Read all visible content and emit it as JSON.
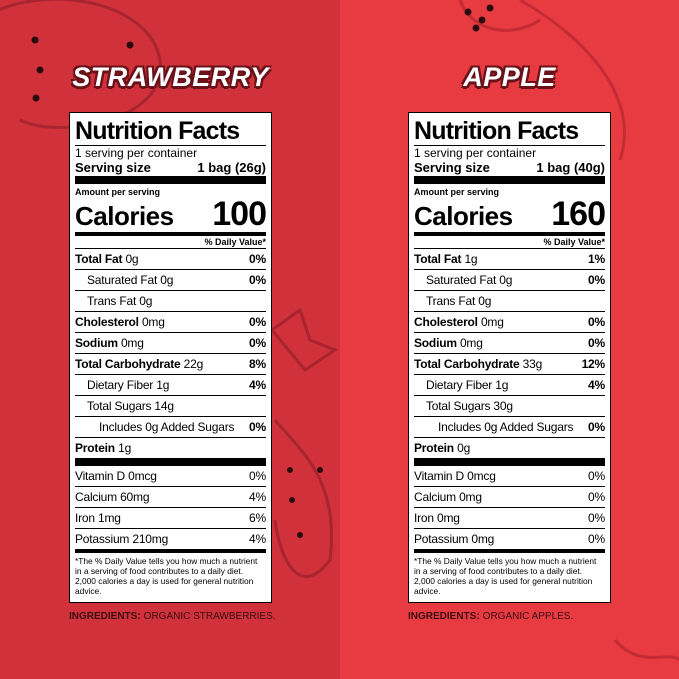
{
  "panels": [
    {
      "title": "STRAWBERRY",
      "label": {
        "heading": "Nutrition Facts",
        "servings": "1 serving per container",
        "serving_size_label": "Serving size",
        "serving_size": "1 bag (26g)",
        "amount_per_serving": "Amount per serving",
        "calories_label": "Calories",
        "calories": "100",
        "dv_header": "% Daily Value*",
        "rows": [
          {
            "name": "Total Fat",
            "amount": "0g",
            "dv": "0%",
            "level": 0
          },
          {
            "name": "Saturated Fat 0g",
            "dv": "0%",
            "level": 1
          },
          {
            "name": "Trans Fat 0g",
            "level": 1
          },
          {
            "name": "Cholesterol",
            "amount": "0mg",
            "dv": "0%",
            "level": 0
          },
          {
            "name": "Sodium",
            "amount": "0mg",
            "dv": "0%",
            "level": 0
          },
          {
            "name": "Total Carbohydrate",
            "amount": "22g",
            "dv": "8%",
            "level": 0
          },
          {
            "name": "Dietary Fiber 1g",
            "dv": "4%",
            "level": 1
          },
          {
            "name": "Total Sugars 14g",
            "level": 1
          },
          {
            "name": "Includes 0g Added Sugars",
            "dv": "0%",
            "level": 2
          },
          {
            "name": "Protein",
            "amount": "1g",
            "level": 0
          }
        ],
        "vitamins": [
          {
            "name": "Vitamin D 0mcg",
            "dv": "0%"
          },
          {
            "name": "Calcium 60mg",
            "dv": "4%"
          },
          {
            "name": "Iron 1mg",
            "dv": "6%"
          },
          {
            "name": "Potassium 210mg",
            "dv": "4%"
          }
        ],
        "footnote": "*The % Daily Value tells you how much a nutrient in a serving of food contributes to a daily diet. 2,000 calories a day is used for general nutrition advice."
      },
      "ingredients_label": "INGREDIENTS:",
      "ingredients": "ORGANIC STRAWBERRIES."
    },
    {
      "title": "APPLE",
      "label": {
        "heading": "Nutrition Facts",
        "servings": "1 serving per container",
        "serving_size_label": "Serving size",
        "serving_size": "1 bag (40g)",
        "amount_per_serving": "Amount per serving",
        "calories_label": "Calories",
        "calories": "160",
        "dv_header": "% Daily Value*",
        "rows": [
          {
            "name": "Total Fat",
            "amount": "1g",
            "dv": "1%",
            "level": 0
          },
          {
            "name": "Saturated Fat 0g",
            "dv": "0%",
            "level": 1
          },
          {
            "name": "Trans Fat 0g",
            "level": 1
          },
          {
            "name": "Cholesterol",
            "amount": "0mg",
            "dv": "0%",
            "level": 0
          },
          {
            "name": "Sodium",
            "amount": "0mg",
            "dv": "0%",
            "level": 0
          },
          {
            "name": "Total Carbohydrate",
            "amount": "33g",
            "dv": "12%",
            "level": 0
          },
          {
            "name": "Dietary Fiber 1g",
            "dv": "4%",
            "level": 1
          },
          {
            "name": "Total Sugars 30g",
            "level": 1
          },
          {
            "name": "Includes 0g Added Sugars",
            "dv": "0%",
            "level": 2
          },
          {
            "name": "Protein",
            "amount": "0g",
            "level": 0
          }
        ],
        "vitamins": [
          {
            "name": "Vitamin D 0mcg",
            "dv": "0%"
          },
          {
            "name": "Calcium 0mg",
            "dv": "0%"
          },
          {
            "name": "Iron 0mg",
            "dv": "0%"
          },
          {
            "name": "Potassium 0mg",
            "dv": "0%"
          }
        ],
        "footnote": "*The % Daily Value tells you how much a nutrient in a serving of food contributes to a daily diet. 2,000 calories a day is used for general nutrition advice."
      },
      "ingredients_label": "INGREDIENTS:",
      "ingredients": "ORGANIC APPLES."
    }
  ]
}
